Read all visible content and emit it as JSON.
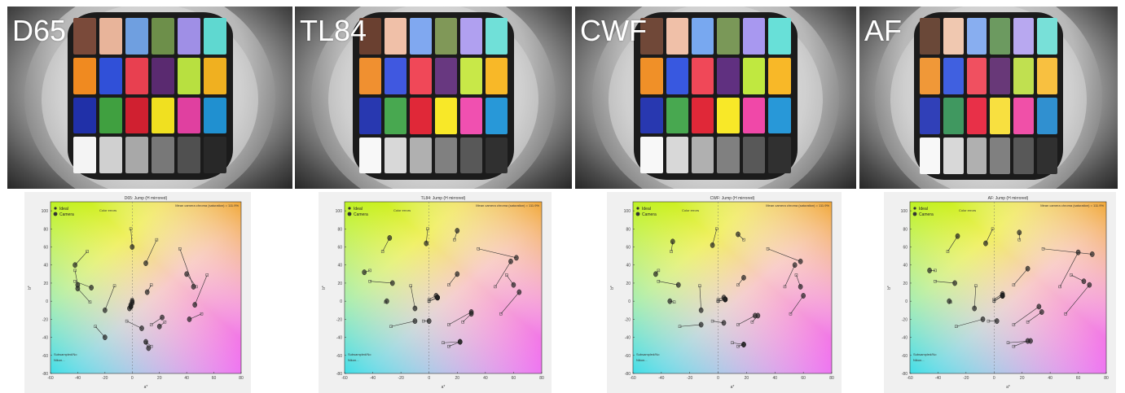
{
  "panels": [
    {
      "illuminant": "D65"
    },
    {
      "illuminant": "TL84"
    },
    {
      "illuminant": "CWF"
    },
    {
      "illuminant": "AF"
    }
  ],
  "patch_colors": [
    [
      "#7a4a3a",
      "#e8b49a",
      "#6f9fe0",
      "#6d8f4a",
      "#9f8fe6",
      "#5fd8d0",
      "#f08a20",
      "#3050d8",
      "#e84050",
      "#5a2a70",
      "#b8e040",
      "#f0b020",
      "#2030a8",
      "#40a040",
      "#d02030",
      "#f0e020",
      "#e040a0",
      "#2090d0",
      "#f4f4f4",
      "#d0d0d0",
      "#a8a8a8",
      "#787878",
      "#505050",
      "#282828"
    ],
    [
      "#6a4030",
      "#f0c0a8",
      "#80a8f0",
      "#809858",
      "#b0a0f0",
      "#70e0d8",
      "#f09030",
      "#4058e0",
      "#f04858",
      "#683880",
      "#c8e848",
      "#f8b828",
      "#2838b0",
      "#48a850",
      "#e02838",
      "#f8e828",
      "#f050b0",
      "#2898d8",
      "#f8f8f8",
      "#d8d8d8",
      "#b0b0b0",
      "#808080",
      "#585858",
      "#303030"
    ],
    [
      "#704838",
      "#f0c0a8",
      "#78a8f0",
      "#7a9858",
      "#a898f0",
      "#68e0d8",
      "#f09028",
      "#3858e0",
      "#f04858",
      "#603080",
      "#c0e840",
      "#f8b828",
      "#2838b0",
      "#48a850",
      "#e02838",
      "#f8e828",
      "#f048a8",
      "#2898d8",
      "#f8f8f8",
      "#d8d8d8",
      "#b0b0b0",
      "#808080",
      "#585858",
      "#303030"
    ],
    [
      "#6a4838",
      "#f0c8b0",
      "#88aef0",
      "#6c9a60",
      "#b8a8f0",
      "#78e0d8",
      "#f09838",
      "#4060e0",
      "#f05060",
      "#683878",
      "#c0e050",
      "#f8c040",
      "#3040b8",
      "#409860",
      "#e83048",
      "#f8e040",
      "#f050a8",
      "#3090d0",
      "#f8f8f8",
      "#d8d8d8",
      "#b0b0b0",
      "#808080",
      "#585858",
      "#303030"
    ]
  ],
  "chart_data": [
    {
      "type": "scatter",
      "title": "D65: Jump (H mirrored)",
      "xlabel": "a*",
      "ylabel": "b*",
      "xlim": [
        -60,
        80
      ],
      "ylim": [
        -80,
        110
      ],
      "xticks": [
        -60,
        -40,
        -20,
        0,
        20,
        40,
        60,
        80
      ],
      "yticks": [
        -80,
        -60,
        -40,
        -20,
        0,
        20,
        40,
        60,
        80,
        100
      ],
      "legend": [
        "Ideal",
        "Camera"
      ],
      "legend_position": "top-left",
      "series": [
        {
          "name": "Ideal",
          "x": [
            14,
            -13,
            -4,
            -42,
            14,
            -31,
            35,
            10,
            47,
            24,
            -33,
            18,
            14,
            -42,
            55,
            -1,
            51,
            -27,
            0,
            0,
            0,
            0,
            0,
            0
          ],
          "y": [
            18,
            17,
            -22,
            22,
            -26,
            -1,
            58,
            -46,
            16,
            -23,
            55,
            68,
            -50,
            34,
            29,
            80,
            -14,
            -28,
            2,
            0,
            0,
            0,
            0,
            0
          ]
        },
        {
          "name": "Camera",
          "x": [
            11,
            -20,
            7,
            -30,
            22,
            -40,
            45,
            12,
            40,
            20,
            -42,
            10,
            10,
            -40,
            46,
            0,
            42,
            -20,
            -2,
            -1,
            -1,
            -1,
            0,
            0
          ],
          "y": [
            10,
            -10,
            -30,
            15,
            -18,
            14,
            16,
            -52,
            30,
            -28,
            40,
            42,
            -45,
            18,
            -4,
            60,
            -20,
            -40,
            -8,
            -6,
            -6,
            -4,
            -2,
            0
          ]
        }
      ],
      "annotations": [
        "Mean camera chroma (saturation) = 111.9%",
        "Color errors",
        "Subsampled/No",
        "Nikon..."
      ]
    },
    {
      "type": "scatter",
      "title": "TL84: Jump (H mirrored)",
      "xlabel": "a*",
      "ylabel": "b*",
      "xlim": [
        -60,
        80
      ],
      "ylim": [
        -80,
        110
      ],
      "xticks": [
        -60,
        -40,
        -20,
        0,
        20,
        40,
        60,
        80
      ],
      "yticks": [
        -80,
        -60,
        -40,
        -20,
        0,
        20,
        40,
        60,
        80,
        100
      ],
      "legend": [
        "Ideal",
        "Camera"
      ],
      "legend_position": "top-left",
      "series": [
        {
          "name": "Ideal",
          "x": [
            14,
            -13,
            -4,
            -42,
            14,
            -31,
            35,
            10,
            47,
            24,
            -33,
            18,
            14,
            -42,
            55,
            -1,
            51,
            -27,
            0,
            0,
            0,
            0,
            0,
            0
          ],
          "y": [
            18,
            17,
            -22,
            22,
            -26,
            -1,
            58,
            -46,
            16,
            -23,
            55,
            68,
            -50,
            34,
            29,
            80,
            -14,
            -28,
            2,
            0,
            0,
            0,
            0,
            0
          ]
        },
        {
          "name": "Camera",
          "x": [
            20,
            -10,
            0,
            -26,
            30,
            -30,
            62,
            22,
            58,
            30,
            -28,
            20,
            22,
            -46,
            60,
            -2,
            64,
            -10,
            5,
            6,
            6,
            6,
            6,
            6
          ],
          "y": [
            30,
            -8,
            -22,
            20,
            -12,
            0,
            48,
            -45,
            44,
            -14,
            70,
            78,
            -45,
            32,
            18,
            64,
            10,
            -22,
            6,
            4,
            4,
            4,
            4,
            4
          ]
        }
      ],
      "annotations": [
        "Mean camera chroma (saturation) = 111.9%",
        "Color errors",
        "Subsampled/No",
        "Nikon..."
      ]
    },
    {
      "type": "scatter",
      "title": "CWF: Jump (H mirrored)",
      "xlabel": "a*",
      "ylabel": "b*",
      "xlim": [
        -60,
        80
      ],
      "ylim": [
        -80,
        110
      ],
      "xticks": [
        -60,
        -40,
        -20,
        0,
        20,
        40,
        60,
        80
      ],
      "yticks": [
        -80,
        -60,
        -40,
        -20,
        0,
        20,
        40,
        60,
        80,
        100
      ],
      "legend": [
        "Ideal",
        "Camera"
      ],
      "legend_position": "top-left",
      "series": [
        {
          "name": "Ideal",
          "x": [
            14,
            -13,
            -4,
            -42,
            14,
            -31,
            35,
            10,
            47,
            24,
            -33,
            18,
            14,
            -42,
            55,
            -1,
            51,
            -27,
            0,
            0,
            0,
            0,
            0,
            0
          ],
          "y": [
            18,
            17,
            -22,
            22,
            -26,
            -1,
            58,
            -46,
            16,
            -23,
            55,
            68,
            -50,
            34,
            29,
            80,
            -14,
            -28,
            2,
            0,
            0,
            0,
            0,
            0
          ]
        },
        {
          "name": "Camera",
          "x": [
            18,
            -12,
            4,
            -28,
            26,
            -34,
            58,
            18,
            54,
            28,
            -32,
            14,
            18,
            -44,
            58,
            -4,
            60,
            -12,
            4,
            5,
            5,
            5,
            5,
            5
          ],
          "y": [
            26,
            -10,
            -24,
            18,
            -16,
            0,
            44,
            -48,
            40,
            -16,
            66,
            74,
            -48,
            30,
            16,
            62,
            6,
            -26,
            4,
            2,
            2,
            2,
            2,
            2
          ]
        }
      ],
      "annotations": [
        "Mean camera chroma (saturation) = 111.9%",
        "Color errors",
        "Subsampled/No",
        "Nikon..."
      ]
    },
    {
      "type": "scatter",
      "title": "AF: Jump (H mirrored)",
      "xlabel": "a*",
      "ylabel": "b*",
      "xlim": [
        -60,
        80
      ],
      "ylim": [
        -80,
        110
      ],
      "xticks": [
        -60,
        -40,
        -20,
        0,
        20,
        40,
        60,
        80
      ],
      "yticks": [
        -80,
        -60,
        -40,
        -20,
        0,
        20,
        40,
        60,
        80,
        100
      ],
      "legend": [
        "Ideal",
        "Camera"
      ],
      "legend_position": "top-left",
      "series": [
        {
          "name": "Ideal",
          "x": [
            14,
            -13,
            -4,
            -42,
            14,
            -31,
            35,
            10,
            47,
            24,
            -33,
            18,
            14,
            -42,
            55,
            -1,
            51,
            -27,
            0,
            0,
            0,
            0,
            0,
            0
          ],
          "y": [
            18,
            17,
            -22,
            22,
            -26,
            -1,
            58,
            -46,
            16,
            -23,
            55,
            68,
            -50,
            34,
            29,
            80,
            -14,
            -28,
            2,
            0,
            0,
            0,
            0,
            0
          ]
        },
        {
          "name": "Camera",
          "x": [
            24,
            -14,
            2,
            -28,
            32,
            -32,
            70,
            26,
            60,
            34,
            -26,
            18,
            24,
            -46,
            64,
            -6,
            68,
            -8,
            6,
            6,
            6,
            6,
            6,
            6
          ],
          "y": [
            36,
            -8,
            -22,
            20,
            -6,
            0,
            52,
            -44,
            54,
            -12,
            72,
            76,
            -44,
            34,
            22,
            64,
            18,
            -20,
            8,
            6,
            6,
            6,
            6,
            6
          ]
        }
      ],
      "annotations": [
        "Mean camera chroma (saturation) = 111.9%",
        "Color errors",
        "Subsampled/No",
        "Nikon..."
      ]
    }
  ]
}
